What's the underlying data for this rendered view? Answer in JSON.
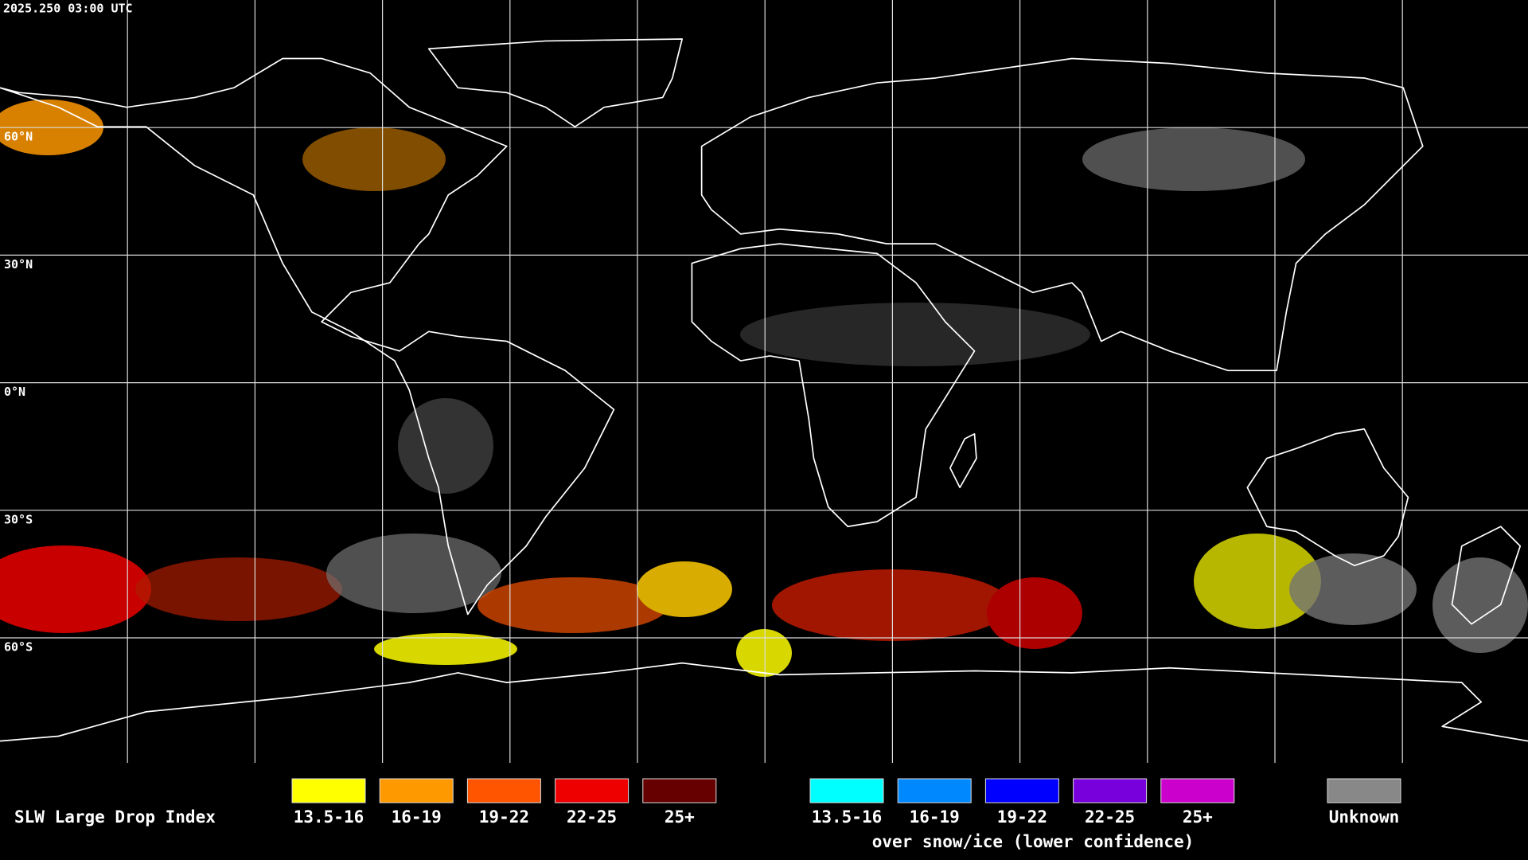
{
  "header": {
    "timestamp": "2025.250 03:00 UTC"
  },
  "map": {
    "lat_labels": [
      "60°N",
      "30°N",
      "0°N",
      "30°S",
      "60°S"
    ]
  },
  "legend": {
    "title": "SLW Large Drop Index",
    "groups": [
      {
        "items": [
          {
            "label": "13.5-16",
            "color": "#ffff00"
          },
          {
            "label": "16-19",
            "color": "#ff9900"
          },
          {
            "label": "19-22",
            "color": "#ff5500"
          },
          {
            "label": "22-25",
            "color": "#ee0000"
          },
          {
            "label": "25+",
            "color": "#660000"
          }
        ]
      },
      {
        "items": [
          {
            "label": "13.5-16",
            "color": "#00ffff"
          },
          {
            "label": "16-19",
            "color": "#0088ff"
          },
          {
            "label": "19-22",
            "color": "#0000ff"
          },
          {
            "label": "22-25",
            "color": "#7700dd"
          },
          {
            "label": "25+",
            "color": "#cc00cc"
          }
        ],
        "caption": "over snow/ice (lower confidence)"
      }
    ],
    "unknown": {
      "label": "Unknown",
      "color": "#888888"
    }
  }
}
